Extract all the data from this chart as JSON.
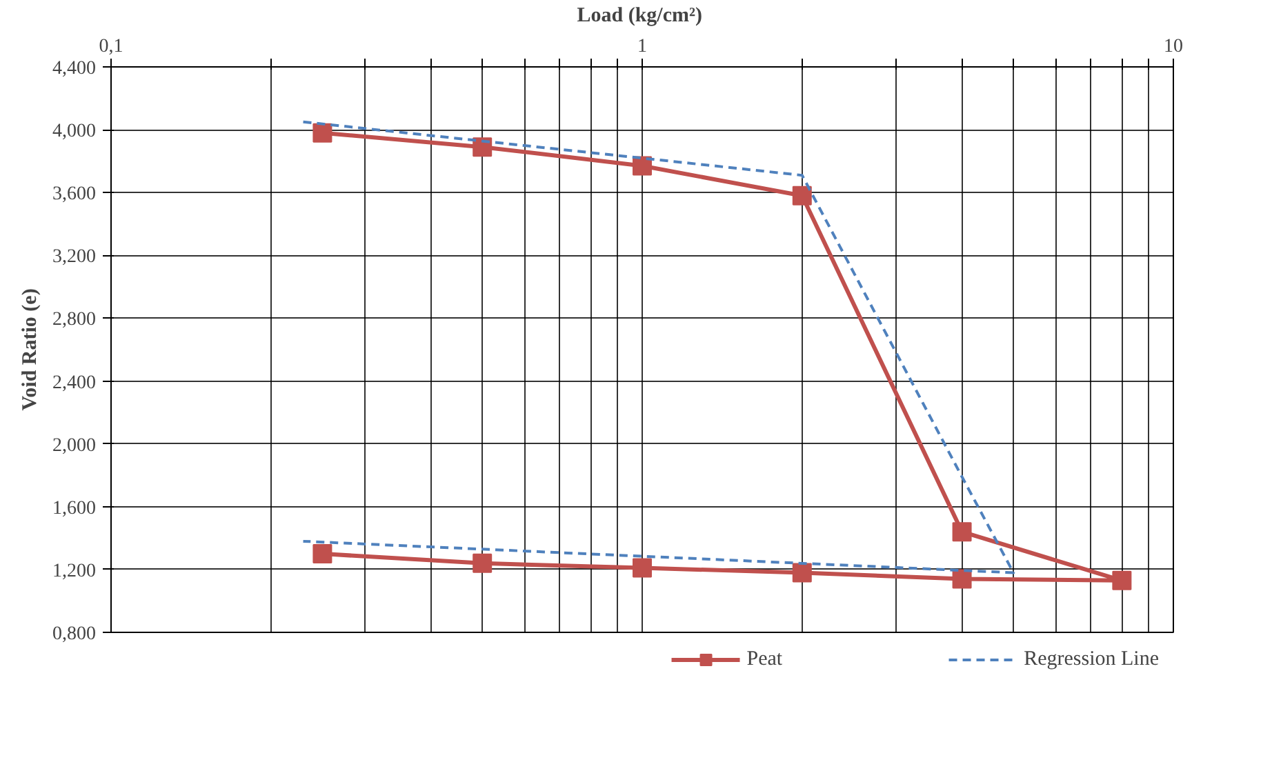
{
  "chart_data": {
    "type": "line",
    "xlabel": "Load  (kg/cm²)",
    "ylabel": "Void Ratio (e)",
    "log": "x",
    "grid": true,
    "legend": "bottom",
    "xlim": [
      0.1,
      10
    ],
    "ylim": [
      0.8,
      4.4
    ],
    "xticks": [
      {
        "value": 0.1,
        "label": "0,1"
      },
      {
        "value": 0.2,
        "label": null
      },
      {
        "value": 0.3,
        "label": null
      },
      {
        "value": 0.4,
        "label": null
      },
      {
        "value": 0.5,
        "label": null
      },
      {
        "value": 0.6,
        "label": null
      },
      {
        "value": 0.7,
        "label": null
      },
      {
        "value": 0.8,
        "label": null
      },
      {
        "value": 0.9,
        "label": null
      },
      1,
      {
        "value": 2,
        "label": null
      },
      {
        "value": 3,
        "label": null
      },
      {
        "value": 4,
        "label": null
      },
      {
        "value": 5,
        "label": null
      },
      {
        "value": 6,
        "label": null
      },
      {
        "value": 7,
        "label": null
      },
      {
        "value": 8,
        "label": null
      },
      {
        "value": 9,
        "label": null
      },
      10
    ],
    "yticks": [
      {
        "value": 0.8,
        "label": "0,800"
      },
      {
        "value": 1.2,
        "label": "1,200"
      },
      {
        "value": 1.6,
        "label": "1,600"
      },
      {
        "value": 2.0,
        "label": "2,000"
      },
      {
        "value": 2.4,
        "label": "2,400"
      },
      {
        "value": 2.8,
        "label": "2,800"
      },
      {
        "value": 3.2,
        "label": "3,200"
      },
      {
        "value": 3.6,
        "label": "3,600"
      },
      {
        "value": 4.0,
        "label": "4,000"
      },
      {
        "value": 4.4,
        "label": "4,400"
      }
    ],
    "series": [
      {
        "name": "Peat",
        "color": "#c0504d",
        "marker": "square",
        "line_style": "solid",
        "x": [
          0.25,
          0.5,
          1,
          2,
          4,
          8,
          4,
          2,
          1,
          0.5,
          0.25
        ],
        "values": [
          3.98,
          3.89,
          3.77,
          3.58,
          1.44,
          1.13,
          1.14,
          1.18,
          1.21,
          1.24,
          1.3
        ]
      },
      {
        "name": "Regression Line",
        "color": "#4f81bd",
        "marker": "none",
        "line_style": "dashed",
        "x": [
          0.23,
          2,
          4,
          5,
          0.23
        ],
        "values": [
          4.05,
          3.71,
          1.79,
          1.18,
          1.38
        ]
      }
    ]
  }
}
